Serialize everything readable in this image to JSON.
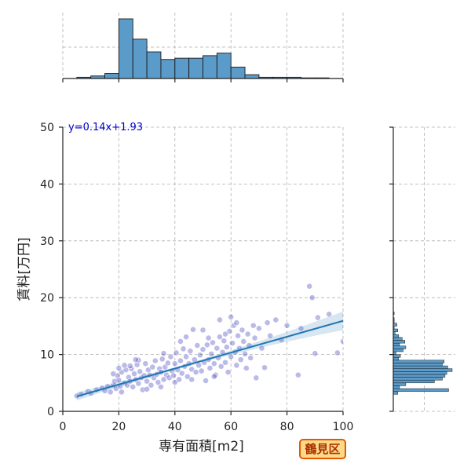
{
  "badge": {
    "label": "鶴見区",
    "border_color": "#e05a00",
    "fill_color": "#ffd98a",
    "text_color": "#a83200"
  },
  "chart_data": {
    "type": "scatter",
    "xlabel": "専有面積[m2]",
    "ylabel": "賃料[万円]",
    "xlim": [
      0,
      100
    ],
    "ylim": [
      0,
      50
    ],
    "x_ticks": [
      "0",
      "20",
      "40",
      "60",
      "80",
      "100"
    ],
    "y_ticks": [
      "0",
      "10",
      "20",
      "30",
      "40",
      "50"
    ],
    "grid": true,
    "point_color": "#2a2ab8",
    "bar_color": "#5b9bc9",
    "line_color": "#1f77b4",
    "regression": {
      "label": "y=0.14x+1.93",
      "slope": 0.14,
      "intercept": 1.93,
      "x_range": [
        5,
        100
      ]
    },
    "marginal_x_hist": {
      "bin_edges": [
        0,
        5,
        10,
        15,
        20,
        25,
        30,
        35,
        40,
        45,
        50,
        55,
        60,
        65,
        70,
        75,
        80,
        85,
        90,
        95,
        100
      ],
      "counts": [
        0,
        1,
        2,
        4,
        47,
        31,
        21,
        15,
        16,
        16,
        18,
        20,
        9,
        3,
        1,
        1,
        1,
        0.5,
        0.5,
        0
      ]
    },
    "marginal_y_hist": {
      "bin_width": 0.5,
      "bins": [
        [
          3.0,
          5
        ],
        [
          3.5,
          62
        ],
        [
          4.0,
          7
        ],
        [
          4.5,
          14
        ],
        [
          5.0,
          46
        ],
        [
          5.5,
          55
        ],
        [
          6.0,
          58
        ],
        [
          6.5,
          60
        ],
        [
          7.0,
          66
        ],
        [
          7.5,
          61
        ],
        [
          8.0,
          55
        ],
        [
          8.5,
          57
        ],
        [
          9.0,
          6
        ],
        [
          9.5,
          8
        ],
        [
          10.0,
          3
        ],
        [
          10.5,
          11
        ],
        [
          11.0,
          14
        ],
        [
          11.5,
          7
        ],
        [
          12.0,
          13
        ],
        [
          12.5,
          10
        ],
        [
          13.0,
          6
        ],
        [
          13.5,
          2
        ],
        [
          14.0,
          5
        ],
        [
          14.5,
          1
        ],
        [
          15.0,
          4
        ],
        [
          15.5,
          1
        ],
        [
          16.0,
          1
        ],
        [
          17.0,
          1
        ]
      ]
    },
    "points": [
      [
        5,
        2.7
      ],
      [
        6.5,
        3.0
      ],
      [
        9,
        3.5
      ],
      [
        10,
        3.2
      ],
      [
        12,
        3.8
      ],
      [
        14,
        4.1
      ],
      [
        15,
        3.6
      ],
      [
        16,
        4.4
      ],
      [
        17,
        3.4
      ],
      [
        18,
        4.6
      ],
      [
        18.5,
        5.3
      ],
      [
        19,
        4.0
      ],
      [
        19.5,
        6.3
      ],
      [
        20,
        5.5
      ],
      [
        20.5,
        4.4
      ],
      [
        21,
        6.9
      ],
      [
        21,
        3.4
      ],
      [
        22,
        5.0
      ],
      [
        22.5,
        7.3
      ],
      [
        23,
        4.6
      ],
      [
        23.5,
        6.0
      ],
      [
        24,
        5.3
      ],
      [
        24.5,
        7.5
      ],
      [
        25,
        4.3
      ],
      [
        25.5,
        6.6
      ],
      [
        26,
        5.6
      ],
      [
        26.5,
        8.2
      ],
      [
        27,
        4.9
      ],
      [
        27.5,
        7.0
      ],
      [
        28,
        5.9
      ],
      [
        28.5,
        3.8
      ],
      [
        29,
        6.3
      ],
      [
        29.5,
        8.4
      ],
      [
        30,
        5.3
      ],
      [
        30.5,
        7.3
      ],
      [
        31,
        6.4
      ],
      [
        31.5,
        4.6
      ],
      [
        32,
        7.8
      ],
      [
        32.5,
        5.9
      ],
      [
        33,
        8.9
      ],
      [
        33.5,
        6.5
      ],
      [
        34,
        5.1
      ],
      [
        34.5,
        7.5
      ],
      [
        35,
        6.9
      ],
      [
        35.5,
        9.2
      ],
      [
        36,
        5.6
      ],
      [
        36.5,
        7.8
      ],
      [
        37,
        6.4
      ],
      [
        37.5,
        8.5
      ],
      [
        38,
        5.9
      ],
      [
        38.5,
        9.6
      ],
      [
        39,
        7.1
      ],
      [
        39.5,
        6.3
      ],
      [
        40,
        8.4
      ],
      [
        40.5,
        10.3
      ],
      [
        41,
        7.3
      ],
      [
        41.5,
        5.6
      ],
      [
        42,
        8.9
      ],
      [
        42.5,
        6.7
      ],
      [
        43,
        11.0
      ],
      [
        43.5,
        7.9
      ],
      [
        44,
        9.6
      ],
      [
        44.5,
        6.1
      ],
      [
        45,
        8.4
      ],
      [
        45.5,
        10.6
      ],
      [
        46,
        7.4
      ],
      [
        46.5,
        14.4
      ],
      [
        47,
        9.1
      ],
      [
        47.5,
        6.9
      ],
      [
        48,
        11.6
      ],
      [
        48.5,
        8.1
      ],
      [
        49,
        9.9
      ],
      [
        49.5,
        7.1
      ],
      [
        50,
        10.9
      ],
      [
        50.5,
        8.6
      ],
      [
        51,
        5.4
      ],
      [
        51.5,
        11.7
      ],
      [
        52,
        9.1
      ],
      [
        52.5,
        7.6
      ],
      [
        53,
        10.1
      ],
      [
        53.5,
        12.1
      ],
      [
        54,
        8.4
      ],
      [
        54.5,
        6.4
      ],
      [
        55,
        11.1
      ],
      [
        55.5,
        9.4
      ],
      [
        56,
        13.1
      ],
      [
        56.5,
        7.9
      ],
      [
        57,
        10.4
      ],
      [
        57.5,
        12.4
      ],
      [
        58,
        8.6
      ],
      [
        58.5,
        11.3
      ],
      [
        59,
        6.9
      ],
      [
        59.5,
        14.1
      ],
      [
        60,
        9.6
      ],
      [
        60.5,
        12.0
      ],
      [
        61,
        15.1
      ],
      [
        61.5,
        10.4
      ],
      [
        62,
        8.1
      ],
      [
        62.5,
        13.3
      ],
      [
        63,
        11.1
      ],
      [
        63.5,
        9.1
      ],
      [
        64,
        14.3
      ],
      [
        64.5,
        12.3
      ],
      [
        65,
        10.1
      ],
      [
        65.5,
        7.6
      ],
      [
        66,
        13.6
      ],
      [
        66.5,
        11.6
      ],
      [
        67,
        9.4
      ],
      [
        68,
        15.1
      ],
      [
        68.5,
        12.9
      ],
      [
        69,
        5.9
      ],
      [
        70,
        14.6
      ],
      [
        71,
        11.1
      ],
      [
        72,
        7.7
      ],
      [
        73,
        15.6
      ],
      [
        74,
        13.3
      ],
      [
        76,
        16.1
      ],
      [
        78,
        12.6
      ],
      [
        80,
        15.1
      ],
      [
        84,
        6.4
      ],
      [
        85,
        14.6
      ],
      [
        88,
        22.0
      ],
      [
        89,
        20.0
      ],
      [
        90,
        10.2
      ],
      [
        91,
        16.5
      ],
      [
        95,
        17.1
      ],
      [
        98,
        10.3
      ],
      [
        100,
        12.3
      ],
      [
        24,
        8.0
      ],
      [
        27,
        9.0
      ],
      [
        36,
        10.2
      ],
      [
        42,
        12.3
      ],
      [
        52,
        12.9
      ],
      [
        58,
        13.6
      ],
      [
        62,
        15.6
      ],
      [
        30,
        3.9
      ],
      [
        35,
        4.3
      ],
      [
        40,
        5.1
      ],
      [
        46,
        5.6
      ],
      [
        54,
        6.1
      ],
      [
        20,
        7.6
      ],
      [
        22,
        8.1
      ],
      [
        26,
        9.1
      ],
      [
        18,
        6.6
      ],
      [
        44,
        13.1
      ],
      [
        50,
        14.3
      ],
      [
        56,
        16.1
      ],
      [
        60,
        16.6
      ]
    ]
  }
}
